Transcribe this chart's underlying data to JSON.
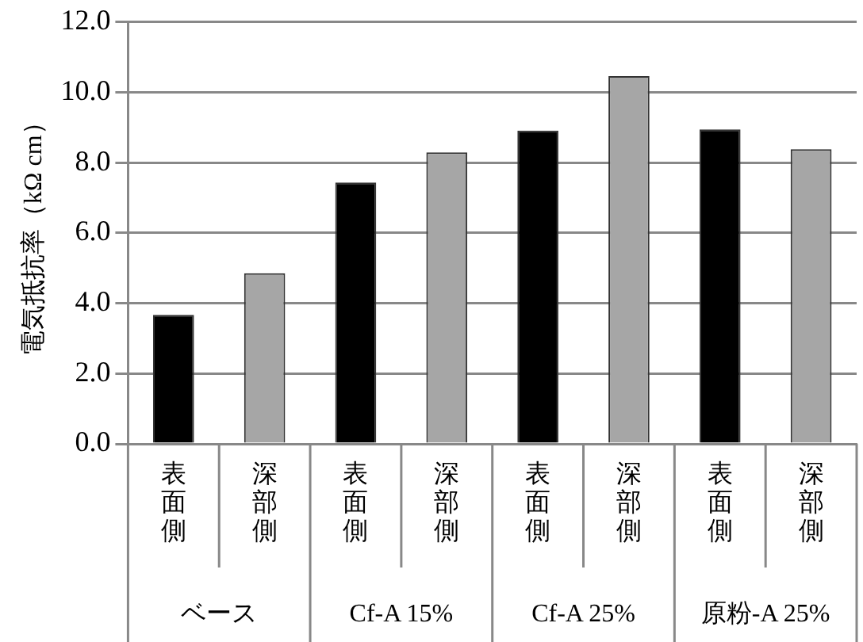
{
  "chart_data": {
    "type": "bar",
    "ylabel": "電気抵抗率（kΩ cm）",
    "categories": [
      "表面側",
      "深部側",
      "表面側",
      "深部側",
      "表面側",
      "深部側",
      "表面側",
      "深部側"
    ],
    "values": [
      3.67,
      4.85,
      7.43,
      8.29,
      8.91,
      10.46,
      8.94,
      8.38
    ],
    "colors": [
      "#000000",
      "#a6a6a6",
      "#000000",
      "#a6a6a6",
      "#000000",
      "#a6a6a6",
      "#000000",
      "#a6a6a6"
    ],
    "annotations": [
      "ベース",
      "Cf-A 15%",
      "Cf-A 25%",
      "原粉-A 25%"
    ],
    "ylim": [
      0,
      12
    ],
    "yticks": [
      {
        "value": 0,
        "label": "0.0"
      },
      {
        "value": 2,
        "label": "2.0"
      },
      {
        "value": 4,
        "label": "4.0"
      },
      {
        "value": 6,
        "label": "6.0"
      },
      {
        "value": 8,
        "label": "8.0"
      },
      {
        "value": 10,
        "label": "10.0"
      },
      {
        "value": 12,
        "label": "12.0"
      }
    ],
    "grid": true,
    "legend": false
  }
}
